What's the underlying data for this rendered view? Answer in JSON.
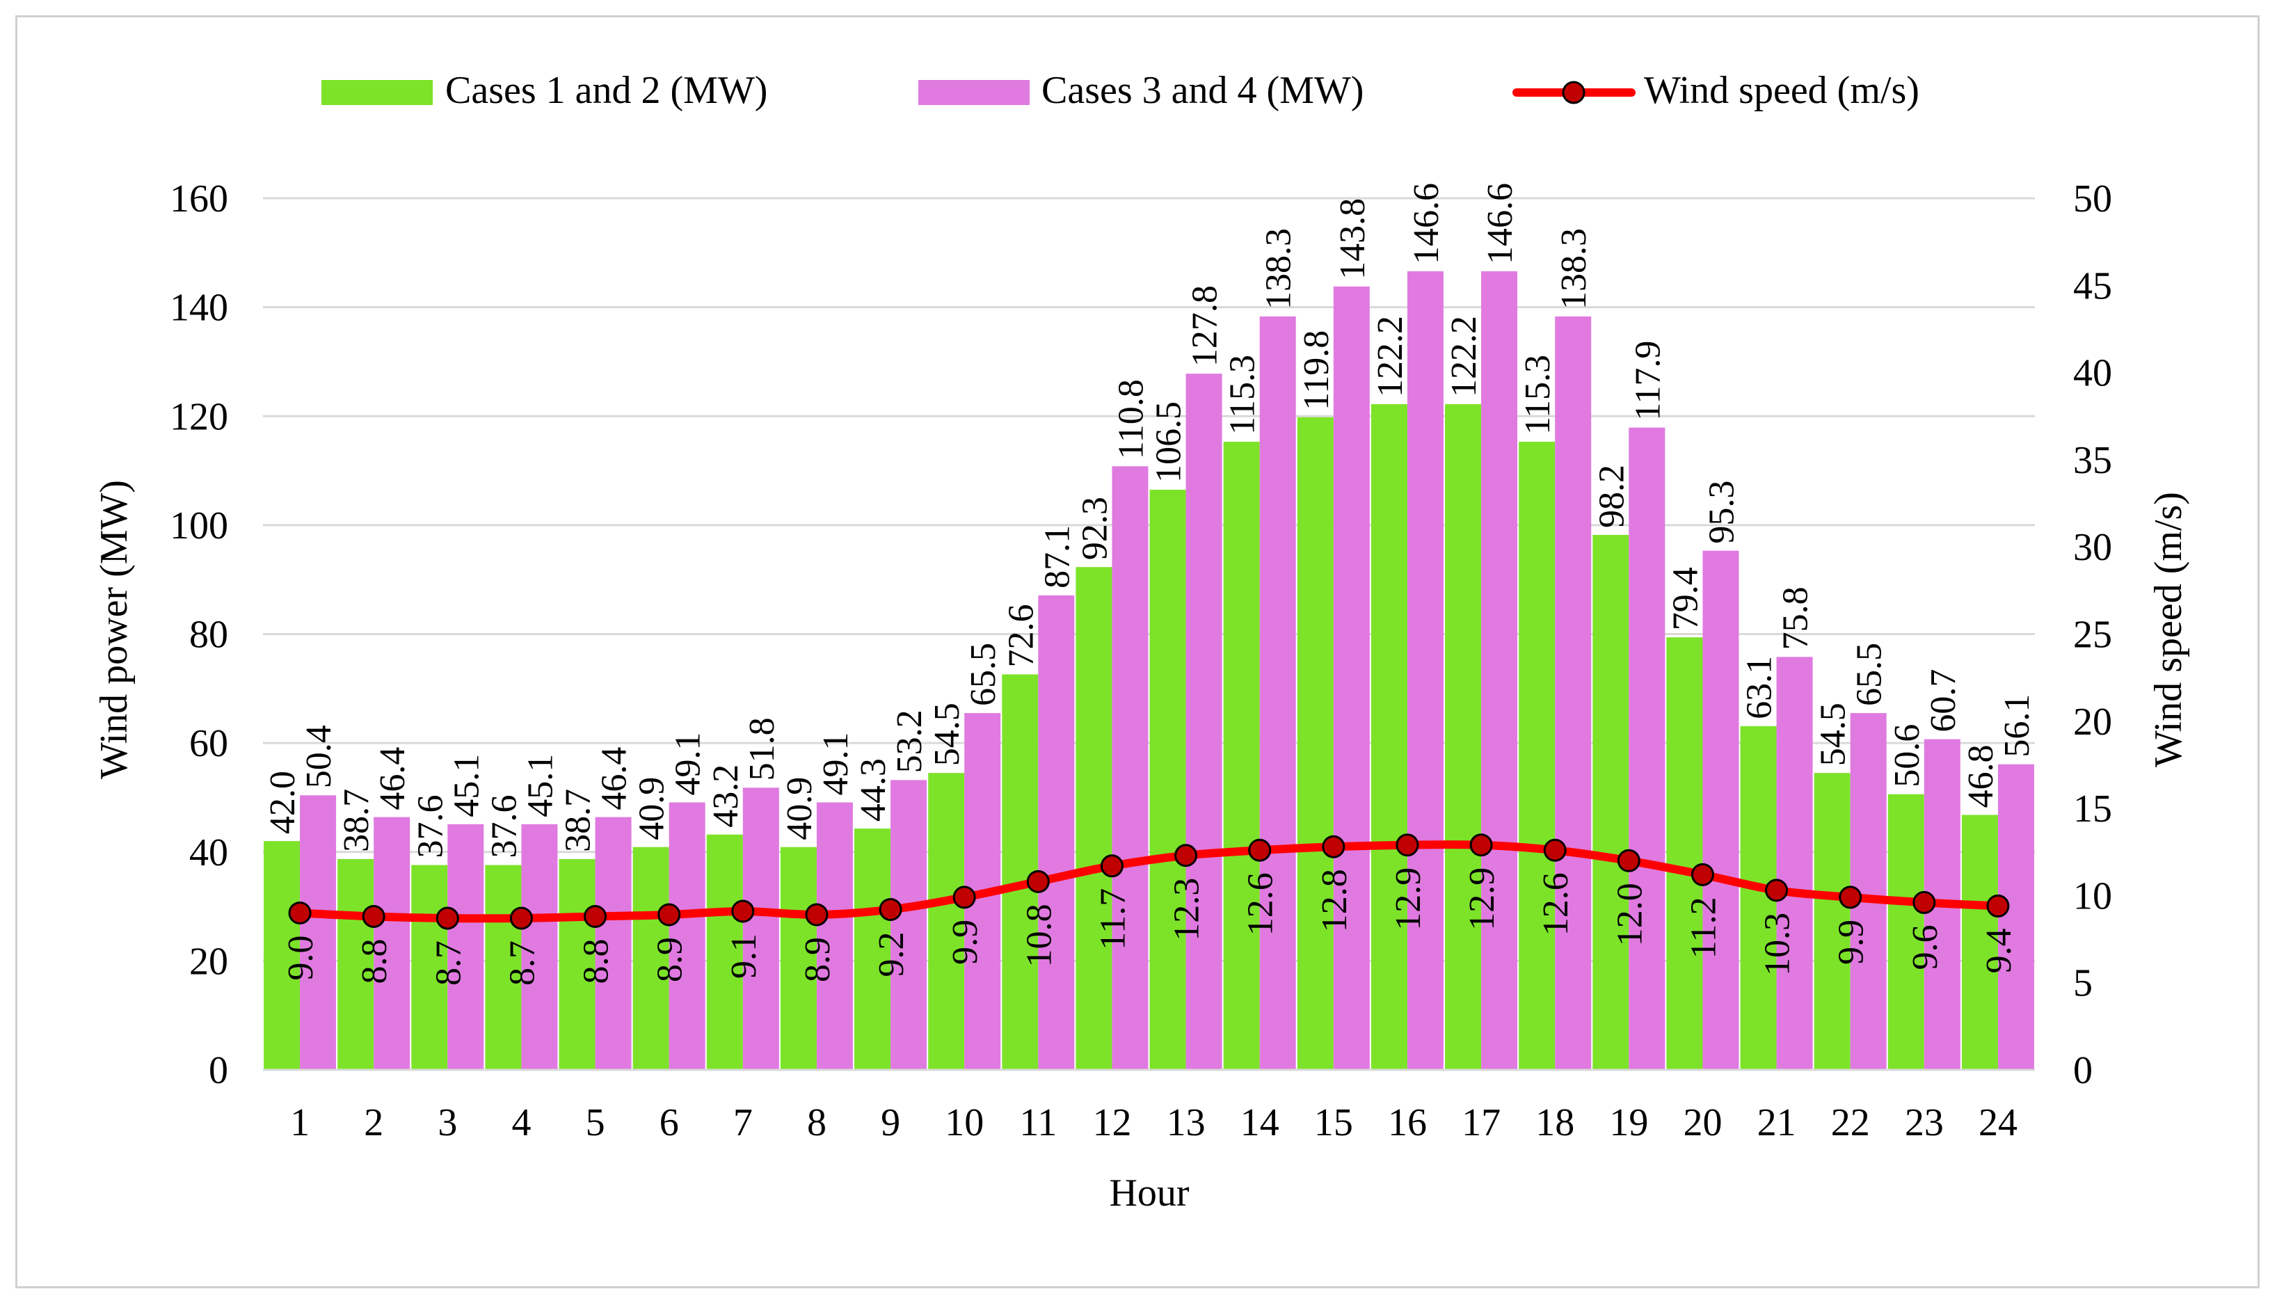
{
  "chart_data": {
    "type": "bar",
    "title": "",
    "xlabel": "Hour",
    "ylabel": "Wind power (MW)",
    "y2label": "Wind speed (m/s)",
    "ylim": [
      0,
      160
    ],
    "y2lim": [
      0,
      50
    ],
    "yticks": [
      "0",
      "20",
      "40",
      "60",
      "80",
      "100",
      "120",
      "140",
      "160"
    ],
    "y2ticks": [
      "0",
      "5",
      "10",
      "15",
      "20",
      "25",
      "30",
      "35",
      "40",
      "45",
      "50"
    ],
    "grid": true,
    "legend_position": "top",
    "categories": [
      "1",
      "2",
      "3",
      "4",
      "5",
      "6",
      "7",
      "8",
      "9",
      "10",
      "11",
      "12",
      "13",
      "14",
      "15",
      "16",
      "17",
      "18",
      "19",
      "20",
      "21",
      "22",
      "23",
      "24"
    ],
    "series": [
      {
        "name": "Cases 1 and 2 (MW)",
        "kind": "bar",
        "axis": "left",
        "color": "#7de329",
        "values": [
          42.0,
          38.7,
          37.6,
          37.6,
          38.7,
          40.9,
          43.2,
          40.9,
          44.3,
          54.5,
          72.6,
          92.3,
          106.5,
          115.3,
          119.8,
          122.2,
          122.2,
          115.3,
          98.2,
          79.4,
          63.1,
          54.5,
          50.6,
          46.8
        ],
        "labels": [
          "42.0",
          "38.7",
          "37.6",
          "37.6",
          "38.7",
          "40.9",
          "43.2",
          "40.9",
          "44.3",
          "54.5",
          "72.6",
          "92.3",
          "106.5",
          "115.3",
          "119.8",
          "122.2",
          "122.2",
          "115.3",
          "98.2",
          "79.4",
          "63.1",
          "54.5",
          "50.6",
          "46.8"
        ]
      },
      {
        "name": "Cases 3 and 4 (MW)",
        "kind": "bar",
        "axis": "left",
        "color": "#e07ae0",
        "values": [
          50.4,
          46.4,
          45.1,
          45.1,
          46.4,
          49.1,
          51.8,
          49.1,
          53.2,
          65.5,
          87.1,
          110.8,
          127.8,
          138.3,
          143.8,
          146.6,
          146.6,
          138.3,
          117.9,
          95.3,
          75.8,
          65.5,
          60.7,
          56.1
        ],
        "labels": [
          "50.4",
          "46.4",
          "45.1",
          "45.1",
          "46.4",
          "49.1",
          "51.8",
          "49.1",
          "53.2",
          "65.5",
          "87.1",
          "110.8",
          "127.8",
          "138.3",
          "143.8",
          "146.6",
          "146.6",
          "138.3",
          "117.9",
          "95.3",
          "75.8",
          "65.5",
          "60.7",
          "56.1"
        ]
      },
      {
        "name": "Wind speed (m/s)",
        "kind": "line",
        "axis": "right",
        "color": "#ff0000",
        "marker_color": "#c00000",
        "values": [
          9.0,
          8.8,
          8.7,
          8.7,
          8.8,
          8.9,
          9.1,
          8.9,
          9.2,
          9.9,
          10.8,
          11.7,
          12.3,
          12.6,
          12.8,
          12.9,
          12.9,
          12.6,
          12.0,
          11.2,
          10.3,
          9.9,
          9.6,
          9.4
        ],
        "labels": [
          "9.0",
          "8.8",
          "8.7",
          "8.7",
          "8.8",
          "8.9",
          "9.1",
          "8.9",
          "9.2",
          "9.9",
          "10.8",
          "11.7",
          "12.3",
          "12.6",
          "12.8",
          "12.9",
          "12.9",
          "12.6",
          "12.0",
          "11.2",
          "10.3",
          "9.9",
          "9.6",
          "9.4"
        ]
      }
    ]
  }
}
